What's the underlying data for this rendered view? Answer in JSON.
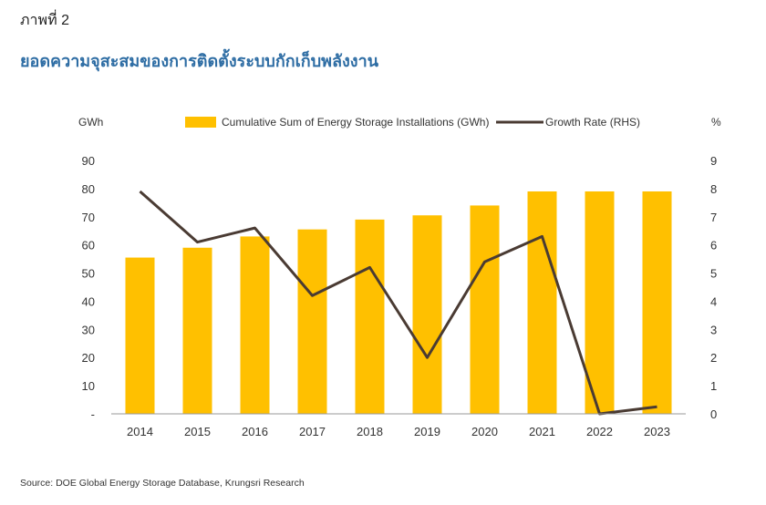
{
  "figure_label": "ภาพที่ 2",
  "figure_title": "ยอดความจุสะสมของการติดตั้งระบบกักเก็บพลังงาน",
  "source": "Source: DOE Global Energy Storage Database, Krungsri Research",
  "colors": {
    "bar": "#FFC000",
    "line": "#4a3b33",
    "axis": "#999999",
    "text": "#333333"
  },
  "chart_data": {
    "type": "bar+line",
    "categories": [
      "2014",
      "2015",
      "2016",
      "2017",
      "2018",
      "2019",
      "2020",
      "2021",
      "2022",
      "2023"
    ],
    "series": [
      {
        "name": "Cumulative Sum of Energy Storage Installations (GWh)",
        "type": "bar",
        "axis": "left",
        "values": [
          55.5,
          59,
          63,
          65.5,
          69,
          70.5,
          74,
          79,
          79,
          79
        ]
      },
      {
        "name": "Growth Rate  (RHS)",
        "type": "line",
        "axis": "right",
        "values": [
          7.9,
          6.1,
          6.6,
          4.2,
          5.2,
          2.0,
          5.4,
          6.3,
          0.0,
          0.25
        ]
      }
    ],
    "y_left": {
      "label": "GWh",
      "ylim": [
        0,
        90
      ],
      "ticks": [
        "-",
        "10",
        "20",
        "30",
        "40",
        "50",
        "60",
        "70",
        "80",
        "90"
      ]
    },
    "y_right": {
      "label": "%",
      "ylim": [
        0,
        9
      ],
      "ticks": [
        "0",
        "1",
        "2",
        "3",
        "4",
        "5",
        "6",
        "7",
        "8",
        "9"
      ]
    },
    "legend_position": "top",
    "grid": false
  }
}
